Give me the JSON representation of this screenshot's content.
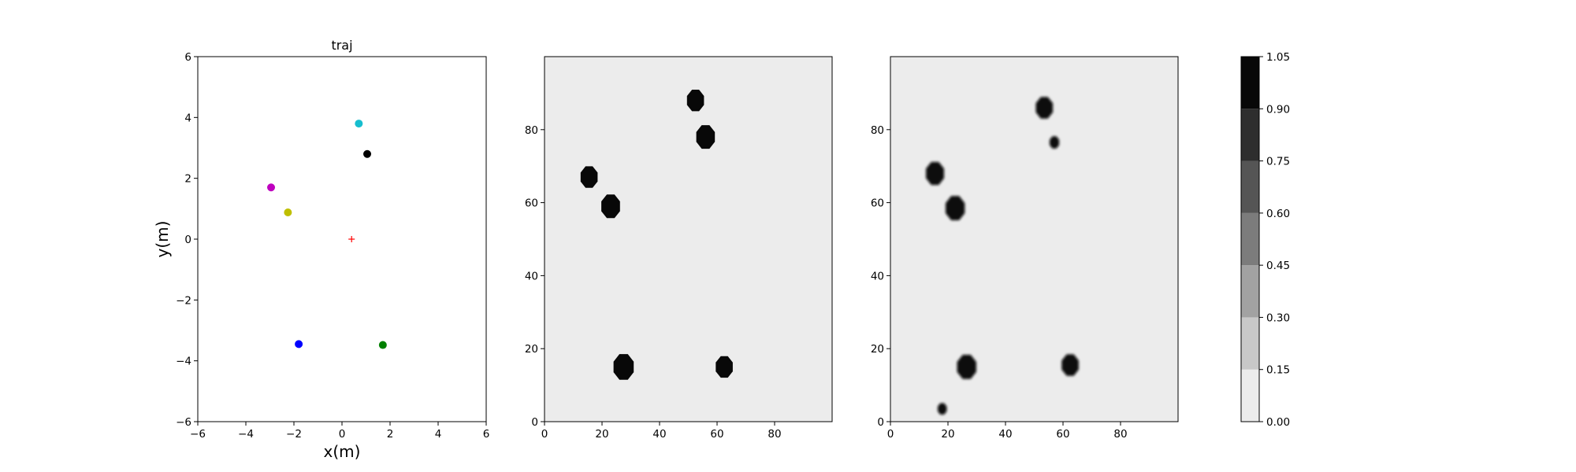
{
  "chart_data": [
    {
      "type": "scatter",
      "title": "traj",
      "xlabel": "x(m)",
      "ylabel": "y(m)",
      "xlim": [
        -6,
        6
      ],
      "ylim": [
        -6,
        6
      ],
      "xticks": [
        "−6",
        "−4",
        "−2",
        "0",
        "2",
        "4",
        "6"
      ],
      "yticks": [
        "−6",
        "−4",
        "−2",
        "0",
        "2",
        "4",
        "6"
      ],
      "points": [
        {
          "x": 0.7,
          "y": 3.8,
          "color": "#17becf",
          "marker": "dot"
        },
        {
          "x": 1.05,
          "y": 2.8,
          "color": "#000000",
          "marker": "dot"
        },
        {
          "x": -2.95,
          "y": 1.7,
          "color": "#bf00bf",
          "marker": "dot"
        },
        {
          "x": -2.25,
          "y": 0.88,
          "color": "#bfbf00",
          "marker": "dot"
        },
        {
          "x": 0.4,
          "y": 0.0,
          "color": "#ff0000",
          "marker": "plus"
        },
        {
          "x": -1.8,
          "y": -3.45,
          "color": "#0000ff",
          "marker": "dot"
        },
        {
          "x": 1.7,
          "y": -3.48,
          "color": "#008000",
          "marker": "dot"
        }
      ],
      "grid": false
    },
    {
      "type": "heatmap",
      "xlim": [
        0,
        100
      ],
      "ylim": [
        0,
        100
      ],
      "xticks": [
        "0",
        "20",
        "40",
        "60",
        "80"
      ],
      "yticks": [
        "0",
        "20",
        "40",
        "60",
        "80"
      ],
      "background_level": 0.0,
      "blobs": [
        {
          "x": 52.5,
          "y": 88,
          "r": 3.2,
          "blur": 0
        },
        {
          "x": 56,
          "y": 78,
          "r": 3.5,
          "blur": 0
        },
        {
          "x": 15.5,
          "y": 67,
          "r": 3.2,
          "blur": 0
        },
        {
          "x": 23,
          "y": 59,
          "r": 3.5,
          "blur": 0
        },
        {
          "x": 27.5,
          "y": 15,
          "r": 3.8,
          "blur": 0
        },
        {
          "x": 62.5,
          "y": 15,
          "r": 3.2,
          "blur": 0
        }
      ]
    },
    {
      "type": "heatmap",
      "xlim": [
        0,
        100
      ],
      "ylim": [
        0,
        100
      ],
      "xticks": [
        "0",
        "20",
        "40",
        "60",
        "80"
      ],
      "yticks": [
        "0",
        "20",
        "40",
        "60",
        "80"
      ],
      "background_level": 0.0,
      "blobs": [
        {
          "x": 53.5,
          "y": 86,
          "r": 3.2,
          "blur": 1
        },
        {
          "x": 57,
          "y": 76.5,
          "r": 1.8,
          "blur": 1
        },
        {
          "x": 15.5,
          "y": 68,
          "r": 3.4,
          "blur": 1
        },
        {
          "x": 22.5,
          "y": 58.5,
          "r": 3.6,
          "blur": 1
        },
        {
          "x": 26.5,
          "y": 15,
          "r": 3.6,
          "blur": 1
        },
        {
          "x": 62.5,
          "y": 15.5,
          "r": 3.2,
          "blur": 1
        },
        {
          "x": 18,
          "y": 3.5,
          "r": 1.7,
          "blur": 1
        }
      ]
    },
    {
      "type": "colorbar",
      "levels": [
        0.0,
        0.15,
        0.3,
        0.45,
        0.6,
        0.75,
        0.9,
        1.05
      ],
      "labels": [
        "0.00",
        "0.15",
        "0.30",
        "0.45",
        "0.60",
        "0.75",
        "0.90",
        "1.05"
      ],
      "colors": [
        "#ececec",
        "#c8c8c8",
        "#a2a2a2",
        "#7c7c7c",
        "#555555",
        "#2e2e2e",
        "#080808"
      ]
    }
  ]
}
